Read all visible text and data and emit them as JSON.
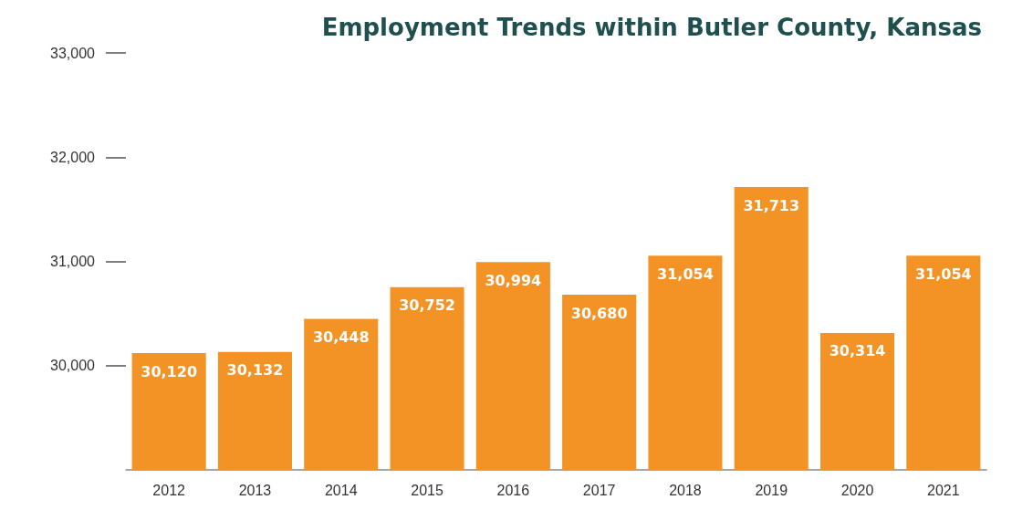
{
  "chart_data": {
    "type": "bar",
    "title": "Employment Trends within Butler County, Kansas",
    "categories": [
      "2012",
      "2013",
      "2014",
      "2015",
      "2016",
      "2017",
      "2018",
      "2019",
      "2020",
      "2021"
    ],
    "values": [
      30120,
      30132,
      30448,
      30752,
      30994,
      30680,
      31054,
      31713,
      30314,
      31054
    ],
    "color": "#f39325",
    "ylim": [
      29000,
      33000
    ],
    "yticks": [
      {
        "value": 30000,
        "label": "30,000"
      },
      {
        "value": 31000,
        "label": "31,000"
      },
      {
        "value": 32000,
        "label": "32,000"
      },
      {
        "value": 33000,
        "label": "33,000"
      }
    ],
    "value_labels": [
      "30,120",
      "30,132",
      "30,448",
      "30,752",
      "30,994",
      "30,680",
      "31,054",
      "31,713",
      "30,314",
      "31,054"
    ],
    "grid": false
  }
}
